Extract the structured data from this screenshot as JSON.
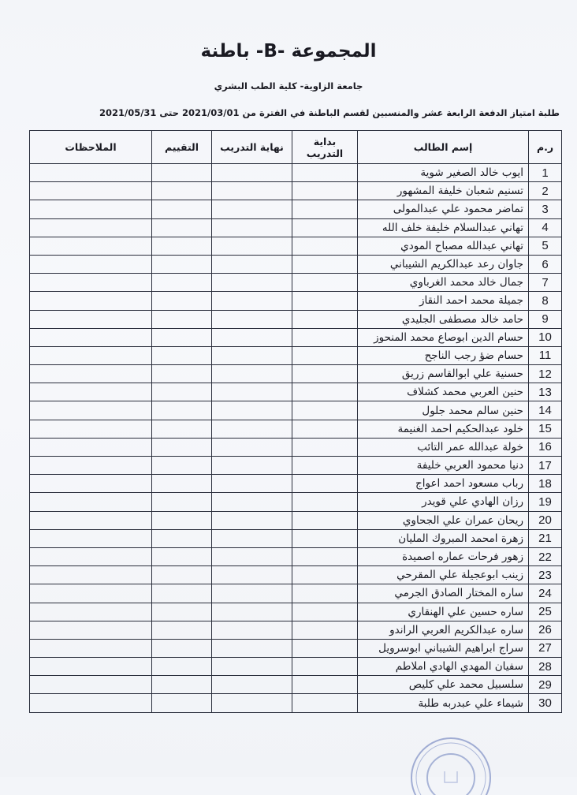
{
  "header": {
    "title": "المجموعة -B- باطنة",
    "subtitle": "جامعة الزاوية- كلية الطب البشري",
    "period": "طلبة امتياز الدفعة الرابعة عشر والمنسبين لقسم الباطنة في الفترة من 2021/03/01 حتى 2021/05/31"
  },
  "table": {
    "columns": [
      "ر.م",
      "إسم الطالب",
      "بداية التدريب",
      "نهاية التدريب",
      "التقييم",
      "الملاحظات"
    ],
    "rows": [
      {
        "num": "1",
        "name": "ايوب خالد الصغير شوية"
      },
      {
        "num": "2",
        "name": "تسنيم شعبان خليفة المشهور"
      },
      {
        "num": "3",
        "name": "تماضر محمود علي عبدالمولى"
      },
      {
        "num": "4",
        "name": "تهاني عبدالسلام خليفة خلف الله"
      },
      {
        "num": "5",
        "name": "تهاني عبدالله مصباح المودي"
      },
      {
        "num": "6",
        "name": "جاوان رعد عبدالكريم الشيباني"
      },
      {
        "num": "7",
        "name": "جمال خالد محمد الغرباوي"
      },
      {
        "num": "8",
        "name": "جميلة محمد احمد النقاز"
      },
      {
        "num": "9",
        "name": "حامد خالد مصطفى الجليدي"
      },
      {
        "num": "10",
        "name": "حسام الدين ابوصاع محمد المنحوز"
      },
      {
        "num": "11",
        "name": "حسام ضؤ رجب الناجح"
      },
      {
        "num": "12",
        "name": "حسنية علي ابوالقاسم زريق"
      },
      {
        "num": "13",
        "name": "حنين العربي محمد كشلاف"
      },
      {
        "num": "14",
        "name": "حنين سالم محمد جلول"
      },
      {
        "num": "15",
        "name": "خلود عبدالحكيم احمد الغنيمة"
      },
      {
        "num": "16",
        "name": "خولة عبدالله عمر التائب"
      },
      {
        "num": "17",
        "name": "دنيا محمود العربي خليفة"
      },
      {
        "num": "18",
        "name": "رباب مسعود احمد اعواج"
      },
      {
        "num": "19",
        "name": "رزان الهادي علي قويدر"
      },
      {
        "num": "20",
        "name": "ريحان عمران علي الجحاوي"
      },
      {
        "num": "21",
        "name": "زهرة امحمد المبروك المليان"
      },
      {
        "num": "22",
        "name": "زهور فرحات عماره اصميدة"
      },
      {
        "num": "23",
        "name": "زينب ابوعجيلة علي المقرحي"
      },
      {
        "num": "24",
        "name": "ساره المختار الصادق الجرمي"
      },
      {
        "num": "25",
        "name": "ساره حسين علي الهنقاري"
      },
      {
        "num": "26",
        "name": "ساره عبدالكريم العربي الراندو"
      },
      {
        "num": "27",
        "name": "سراج ابراهيم الشيباني ابوسرويل"
      },
      {
        "num": "28",
        "name": "سفيان المهدي الهادي املاطم"
      },
      {
        "num": "29",
        "name": "سلسبيل محمد علي كليص"
      },
      {
        "num": "30",
        "name": "شيماء علي عبدربه طلبة"
      }
    ]
  },
  "colors": {
    "ink": "#1a1a22",
    "stamp": "#5a6fb0"
  }
}
